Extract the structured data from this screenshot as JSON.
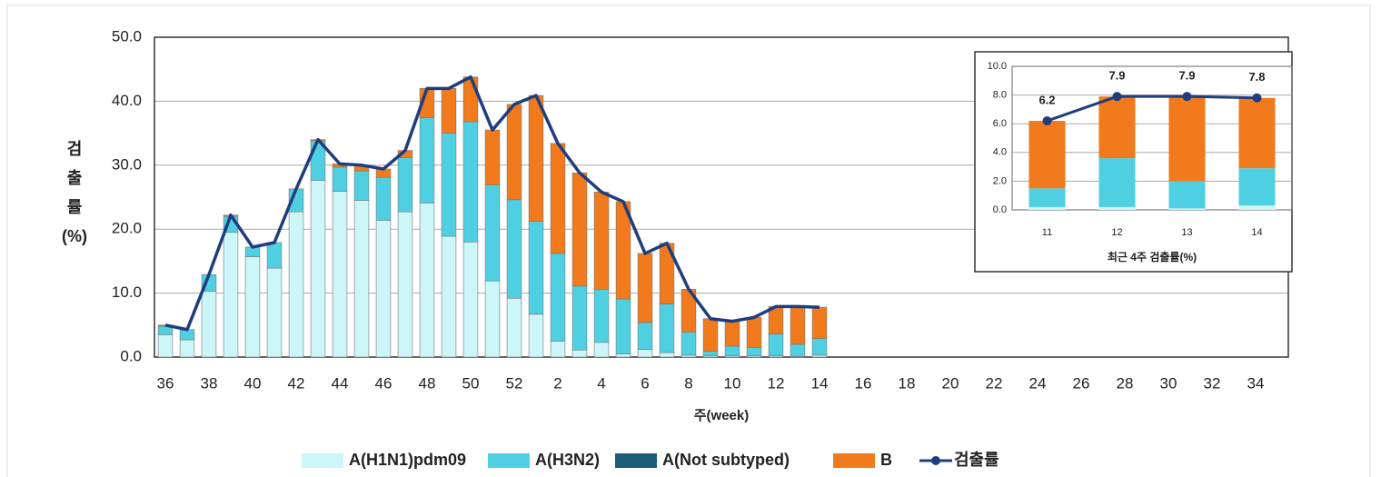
{
  "chart_data": [
    {
      "type": "bar",
      "stacked": true,
      "xlabel": "주(week)",
      "ylabel": "검\n출\n률\n(%)",
      "grid": true,
      "legend": "bottom",
      "markers": false,
      "categories": [
        "36",
        null,
        "38",
        null,
        "40",
        null,
        "42",
        null,
        "44",
        null,
        "46",
        null,
        "48",
        null,
        "50",
        null,
        "52",
        null,
        "2",
        null,
        "4",
        null,
        "6",
        null,
        "8",
        null,
        "10",
        null,
        "12",
        null,
        "14",
        null,
        "16",
        null,
        "18",
        null,
        "20",
        null,
        "22",
        null,
        "24",
        null,
        "26",
        null,
        "28",
        null,
        "30",
        null,
        "32",
        null,
        "34",
        null
      ],
      "ylim": [
        0,
        50
      ],
      "yticks": [
        {
          "value": 0,
          "label": "0.0"
        },
        {
          "value": 10,
          "label": "10.0"
        },
        {
          "value": 20,
          "label": "20.0"
        },
        {
          "value": 30,
          "label": "30.0"
        },
        {
          "value": 40,
          "label": "40.0"
        },
        {
          "value": 50,
          "label": "50.0"
        }
      ],
      "series": [
        {
          "name": "A(H1N1)pdm09",
          "color": "#ccf6f8",
          "values": [
            3.5,
            2.7,
            10.3,
            19.5,
            15.7,
            13.9,
            22.7,
            27.6,
            25.9,
            24.5,
            21.4,
            22.7,
            24.1,
            18.9,
            18.0,
            11.9,
            9.2,
            6.7,
            2.5,
            1.1,
            2.3,
            0.5,
            1.2,
            0.7,
            0.3,
            0.2,
            0.2,
            0.2,
            0.2,
            0.1,
            0.3,
            null,
            null,
            null,
            null,
            null,
            null,
            null,
            null,
            null,
            null,
            null,
            null,
            null,
            null,
            null,
            null,
            null,
            null,
            null,
            null,
            null
          ]
        },
        {
          "name": "A(H3N2)",
          "color": "#4fd0e2",
          "values": [
            1.3,
            1.6,
            2.6,
            2.5,
            1.5,
            4.0,
            3.6,
            6.2,
            3.8,
            4.6,
            6.7,
            8.5,
            13.3,
            16.1,
            18.8,
            15.0,
            15.4,
            14.5,
            13.7,
            10.0,
            8.3,
            8.6,
            4.2,
            7.6,
            3.6,
            0.7,
            1.5,
            1.3,
            3.4,
            1.9,
            2.6,
            null,
            null,
            null,
            null,
            null,
            null,
            null,
            null,
            null,
            null,
            null,
            null,
            null,
            null,
            null,
            null,
            null,
            null,
            null,
            null,
            null
          ]
        },
        {
          "name": "A(Not subtyped)",
          "color": "#1d5d78",
          "values": [
            0,
            0,
            0,
            0,
            0,
            0,
            0,
            0,
            0,
            0,
            0,
            0,
            0,
            0,
            0,
            0,
            0,
            0,
            0,
            0,
            0,
            0,
            0,
            0,
            0,
            0,
            0,
            0,
            0,
            0,
            0,
            null,
            null,
            null,
            null,
            null,
            null,
            null,
            null,
            null,
            null,
            null,
            null,
            null,
            null,
            null,
            null,
            null,
            null,
            null,
            null,
            null
          ]
        },
        {
          "name": "B",
          "color": "#f07a1c",
          "values": [
            0.2,
            0,
            0,
            0.2,
            0,
            0,
            0,
            0.2,
            0.5,
            0.9,
            1.3,
            1.1,
            4.6,
            7.0,
            7.0,
            8.6,
            14.9,
            19.7,
            17.2,
            17.7,
            15.2,
            15.2,
            10.8,
            9.5,
            6.7,
            5.1,
            3.9,
            4.7,
            4.3,
            5.9,
            4.9,
            null,
            null,
            null,
            null,
            null,
            null,
            null,
            null,
            null,
            null,
            null,
            null,
            null,
            null,
            null,
            null,
            null,
            null,
            null,
            null,
            null
          ]
        },
        {
          "name": "검출률",
          "type": "line",
          "color": "#1f3d7e",
          "values": [
            5.0,
            4.3,
            12.9,
            22.2,
            17.2,
            17.9,
            26.3,
            34.0,
            30.2,
            30.0,
            29.4,
            32.3,
            42.0,
            42.0,
            43.8,
            35.5,
            39.5,
            40.9,
            33.4,
            28.8,
            25.8,
            24.3,
            16.2,
            17.8,
            10.6,
            6.0,
            5.6,
            6.2,
            7.9,
            7.9,
            7.8,
            null,
            null,
            null,
            null,
            null,
            null,
            null,
            null,
            null,
            null,
            null,
            null,
            null,
            null,
            null,
            null,
            null,
            null,
            null,
            null,
            null
          ]
        }
      ]
    },
    {
      "type": "bar",
      "stacked": true,
      "xlabel": "최근 4주 검출률(%)",
      "grid": true,
      "markers": true,
      "categories": [
        "11",
        "12",
        "13",
        "14"
      ],
      "ylim": [
        0,
        10
      ],
      "yticks": [
        {
          "value": 0,
          "label": "0.0"
        },
        {
          "value": 2,
          "label": "2.0"
        },
        {
          "value": 4,
          "label": "4.0"
        },
        {
          "value": 6,
          "label": "6.0"
        },
        {
          "value": 8,
          "label": "8.0"
        },
        {
          "value": 10,
          "label": "10.0"
        }
      ],
      "series": [
        {
          "color": "#ccf6f8",
          "values": [
            0.2,
            0.2,
            0.1,
            0.3
          ]
        },
        {
          "color": "#4fd0e2",
          "values": [
            1.3,
            3.4,
            1.9,
            2.6
          ]
        },
        {
          "color": "#f07a1c",
          "values": [
            4.7,
            4.3,
            5.9,
            4.9
          ]
        },
        {
          "type": "line",
          "color": "#1f3d7e",
          "labels": true,
          "values": [
            6.2,
            7.9,
            7.9,
            7.8
          ]
        }
      ]
    }
  ]
}
